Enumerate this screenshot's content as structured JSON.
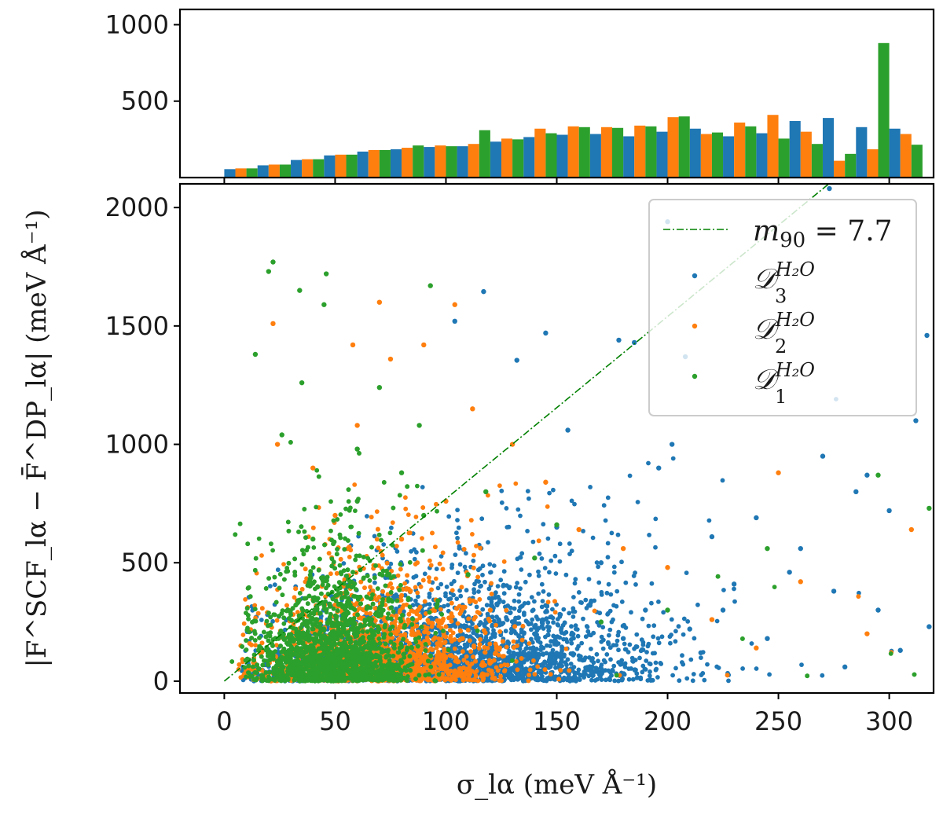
{
  "chart_data": [
    {
      "type": "bar",
      "panel": "top-histogram",
      "x": [
        7.5,
        22.5,
        37.5,
        52.5,
        67.5,
        82.5,
        97.5,
        112.5,
        127.5,
        142.5,
        157.5,
        172.5,
        187.5,
        202.5,
        217.5,
        232.5,
        247.5,
        262.5,
        277.5,
        292.5,
        307.5
      ],
      "series": [
        {
          "name": "D3",
          "color": "#1f77b4",
          "values": [
            55,
            80,
            115,
            145,
            170,
            185,
            200,
            205,
            235,
            265,
            280,
            285,
            270,
            300,
            320,
            270,
            290,
            370,
            390,
            330,
            320
          ]
        },
        {
          "name": "D2",
          "color": "#ff7f0e",
          "values": [
            60,
            85,
            120,
            150,
            180,
            195,
            210,
            220,
            255,
            320,
            335,
            330,
            340,
            395,
            285,
            360,
            410,
            300,
            110,
            185,
            285
          ]
        },
        {
          "name": "D1",
          "color": "#2ca02c",
          "values": [
            60,
            85,
            120,
            150,
            180,
            210,
            205,
            310,
            250,
            290,
            330,
            325,
            335,
            400,
            295,
            335,
            255,
            220,
            155,
            880,
            215
          ]
        }
      ],
      "ylim": [
        0,
        1100
      ],
      "yticks": [
        "500",
        "1000"
      ]
    },
    {
      "type": "scatter",
      "panel": "main-scatter",
      "xlabel": "σ_lα (meV Å⁻¹)",
      "ylabel": "|F^SCF_lα − F̄^DP_lα| (meV Å⁻¹)",
      "xlim": [
        -20,
        320
      ],
      "ylim": [
        -50,
        2100
      ],
      "xticks": [
        "0",
        "50",
        "100",
        "150",
        "200",
        "250",
        "300"
      ],
      "yticks": [
        "0",
        "500",
        "1000",
        "1500",
        "2000"
      ],
      "reference_line": {
        "label": "m90 = 7.7",
        "slope": 7.7,
        "color": "#008000",
        "style": "dash-dot"
      },
      "legend_location": "upper right",
      "series": [
        {
          "name": "D3",
          "color": "#1f77b4",
          "sigma_range": [
            5,
            320
          ],
          "density": "spread, dominant at high sigma",
          "points": [
            [
              273,
              2080
            ],
            [
              200,
              1940
            ],
            [
              117,
              1645
            ],
            [
              145,
              1470
            ],
            [
              104,
              1520
            ],
            [
              185,
              1430
            ],
            [
              178,
              1440
            ],
            [
              208,
              1370
            ],
            [
              132,
              1355
            ],
            [
              155,
              1060
            ],
            [
              202,
              1000
            ],
            [
              196,
              900
            ],
            [
              317,
              1460
            ],
            [
              312,
              1100
            ],
            [
              290,
              870
            ],
            [
              270,
              950
            ],
            [
              300,
              720
            ],
            [
              240,
              690
            ],
            [
              285,
              800
            ],
            [
              220,
              610
            ],
            [
              260,
              560
            ],
            [
              255,
              460
            ],
            [
              230,
              410
            ],
            [
              275,
              380
            ],
            [
              318,
              230
            ],
            [
              305,
              130
            ],
            [
              280,
              60
            ],
            [
              215,
              120
            ],
            [
              190,
              300
            ],
            [
              170,
              500
            ],
            [
              150,
              650
            ],
            [
              165,
              320
            ],
            [
              210,
              220
            ],
            [
              245,
              180
            ],
            [
              225,
              300
            ],
            [
              295,
              300
            ],
            [
              180,
              180
            ],
            [
              140,
              200
            ]
          ]
        },
        {
          "name": "D2",
          "color": "#ff7f0e",
          "sigma_range": [
            5,
            320
          ],
          "density": "intermediate",
          "points": [
            [
              22,
              1510
            ],
            [
              70,
              1600
            ],
            [
              104,
              1590
            ],
            [
              90,
              1420
            ],
            [
              58,
              1420
            ],
            [
              75,
              1360
            ],
            [
              24,
              1000
            ],
            [
              60,
              1080
            ],
            [
              40,
              900
            ],
            [
              112,
              1150
            ],
            [
              130,
              1000
            ],
            [
              145,
              840
            ],
            [
              100,
              760
            ],
            [
              160,
              640
            ],
            [
              180,
              560
            ],
            [
              200,
              480
            ],
            [
              250,
              880
            ],
            [
              310,
              640
            ],
            [
              290,
              200
            ],
            [
              260,
              420
            ],
            [
              240,
              140
            ],
            [
              220,
              260
            ],
            [
              120,
              300
            ],
            [
              80,
              600
            ],
            [
              50,
              700
            ]
          ]
        },
        {
          "name": "D1",
          "color": "#2ca02c",
          "sigma_range": [
            3,
            320
          ],
          "density": "dense, dominant at low sigma",
          "points": [
            [
              22,
              1770
            ],
            [
              20,
              1730
            ],
            [
              46,
              1720
            ],
            [
              34,
              1650
            ],
            [
              93,
              1670
            ],
            [
              45,
              1590
            ],
            [
              14,
              1380
            ],
            [
              35,
              1260
            ],
            [
              70,
              1240
            ],
            [
              88,
              1080
            ],
            [
              60,
              980
            ],
            [
              26,
              1040
            ],
            [
              80,
              880
            ],
            [
              118,
              800
            ],
            [
              150,
              660
            ],
            [
              40,
              600
            ],
            [
              90,
              700
            ],
            [
              60,
              760
            ],
            [
              140,
              520
            ],
            [
              295,
              870
            ],
            [
              318,
              730
            ],
            [
              245,
              560
            ],
            [
              200,
              300
            ],
            [
              170,
              250
            ],
            [
              110,
              450
            ]
          ]
        }
      ]
    }
  ],
  "legend": {
    "line_label": {
      "var": "m",
      "sub": "90",
      "rest": " = 7.7"
    },
    "entries": [
      {
        "series": "D3",
        "base": "𝒟",
        "sub": "3",
        "sup": "H₂O"
      },
      {
        "series": "D2",
        "base": "𝒟",
        "sub": "2",
        "sup": "H₂O"
      },
      {
        "series": "D1",
        "base": "𝒟",
        "sub": "1",
        "sup": "H₂O"
      }
    ]
  }
}
